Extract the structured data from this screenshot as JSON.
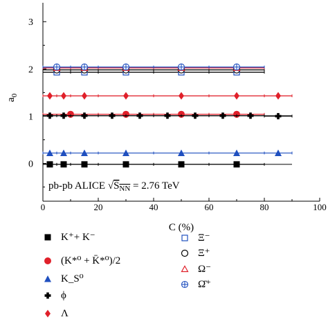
{
  "chart_data": {
    "type": "scatter",
    "title": "",
    "annotation": "pb-pb ALICE √S_NN = 2.76 TeV",
    "annotation_parts": {
      "prefix": "pb-pb ALICE ",
      "sqrt_symbol": "√",
      "s": "S",
      "subscript": "NN",
      "suffix": " = 2.76 TeV"
    },
    "xlabel": "C (%)",
    "ylabel_base": "a",
    "ylabel_sub": "0",
    "xlim": [
      0,
      100
    ],
    "ylim": [
      -0.8,
      3.4
    ],
    "x_ticks": [
      "0",
      "20",
      "40",
      "60",
      "80",
      "100"
    ],
    "x_tick_values": [
      0,
      20,
      40,
      60,
      80,
      100
    ],
    "y_ticks": [
      "0",
      "1",
      "2",
      "3"
    ],
    "y_tick_values": [
      0,
      1,
      2,
      3
    ],
    "grid": false,
    "legend_position": "bottom",
    "series": [
      {
        "name": "K⁺+ K⁻",
        "marker": "square-filled",
        "color": "#000000",
        "line_color": "#000000",
        "x": [
          2.5,
          7.5,
          15,
          30,
          50,
          70
        ],
        "y": [
          -0.02,
          -0.02,
          -0.02,
          -0.02,
          -0.02,
          -0.02
        ],
        "xerr": [
          2.5,
          2.5,
          5,
          10,
          10,
          10
        ],
        "line_x": [
          0,
          90
        ]
      },
      {
        "name": "(K*⁰ + K̄*⁰)/2",
        "marker": "circle-filled",
        "color": "#e0202a",
        "line_color": "#e0202a",
        "x": [
          10,
          30,
          50,
          70
        ],
        "y": [
          1.04,
          1.04,
          1.04,
          1.04
        ],
        "xerr": [
          10,
          10,
          10,
          10
        ],
        "line_x": [
          0,
          80
        ]
      },
      {
        "name": "K_S⁰",
        "marker": "triangle-filled",
        "color": "#1f4fbf",
        "line_color": "#1f4fbf",
        "x": [
          2.5,
          7.5,
          15,
          30,
          50,
          70,
          85
        ],
        "y": [
          0.22,
          0.22,
          0.22,
          0.22,
          0.22,
          0.22,
          0.22
        ],
        "xerr": [
          2.5,
          2.5,
          5,
          10,
          10,
          10,
          5
        ],
        "line_x": [
          0,
          90
        ]
      },
      {
        "name": "ϕ",
        "marker": "plus-filled",
        "color": "#000000",
        "line_color": "#000000",
        "x": [
          2.5,
          7.5,
          15,
          25,
          35,
          45,
          55,
          65,
          75,
          85
        ],
        "y": [
          1.01,
          1.01,
          1.01,
          1.01,
          1.01,
          1.01,
          1.01,
          1.01,
          1.01,
          1.0
        ],
        "xerr": [
          2.5,
          2.5,
          5,
          5,
          5,
          5,
          5,
          5,
          5,
          5
        ],
        "line_x": [
          0,
          90
        ]
      },
      {
        "name": "Λ",
        "marker": "diamond-filled",
        "color": "#e0202a",
        "line_color": "#e0202a",
        "x": [
          2.5,
          7.5,
          15,
          30,
          50,
          70,
          85
        ],
        "y": [
          1.43,
          1.43,
          1.43,
          1.43,
          1.43,
          1.43,
          1.43
        ],
        "xerr": [
          2.5,
          2.5,
          5,
          10,
          10,
          10,
          5
        ],
        "line_x": [
          0,
          90
        ]
      },
      {
        "name": "Ξ⁻",
        "marker": "square-open",
        "color": "#1f4fbf",
        "line_color": "#000000",
        "x": [
          5,
          15,
          30,
          50,
          70
        ],
        "y": [
          1.93,
          1.93,
          1.93,
          1.93,
          1.93
        ],
        "xerr": [
          5,
          5,
          10,
          10,
          10
        ],
        "line_x": [
          0,
          80
        ]
      },
      {
        "name": "Ξ⁺",
        "marker": "circle-open",
        "color": "#000000",
        "line_color": "#000000",
        "x": [
          5,
          15,
          30,
          50,
          70
        ],
        "y": [
          1.98,
          1.98,
          1.98,
          1.98,
          1.98
        ],
        "xerr": [
          5,
          5,
          10,
          10,
          10
        ],
        "line_x": [
          0,
          80
        ]
      },
      {
        "name": "Ω⁻",
        "marker": "triangle-open",
        "color": "#e0202a",
        "line_color": "#e0202a",
        "x": [
          5,
          15,
          30,
          50,
          70
        ],
        "y": [
          2.02,
          2.02,
          2.02,
          2.02,
          2.02
        ],
        "xerr": [
          5,
          5,
          10,
          10,
          10
        ],
        "line_x": [
          0,
          80
        ]
      },
      {
        "name": "Ω̄⁺",
        "marker": "plus-open",
        "color": "#1f4fbf",
        "line_color": "#1f4fbf",
        "x": [
          5,
          15,
          30,
          50,
          70
        ],
        "y": [
          2.04,
          2.04,
          2.04,
          2.04,
          2.04
        ],
        "xerr": [
          5,
          5,
          10,
          10,
          10
        ],
        "line_x": [
          0,
          80
        ]
      }
    ]
  }
}
